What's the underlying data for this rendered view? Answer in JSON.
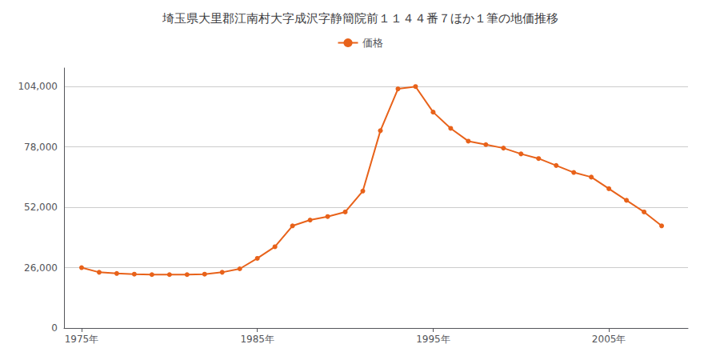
{
  "chart_data": {
    "type": "line",
    "title": "埼玉県大里郡江南村大字成沢字静簡院前１１４４番７ほか１筆の地価推移",
    "x": [
      1975,
      1976,
      1977,
      1978,
      1979,
      1980,
      1981,
      1982,
      1983,
      1984,
      1985,
      1986,
      1987,
      1988,
      1989,
      1990,
      1991,
      1992,
      1993,
      1994,
      1995,
      1996,
      1997,
      1998,
      1999,
      2000,
      2001,
      2002,
      2003,
      2004,
      2005,
      2006,
      2007,
      2008
    ],
    "series": [
      {
        "name": "価格",
        "color": "#e8621a",
        "values": [
          26000,
          24000,
          23500,
          23200,
          23000,
          23000,
          23000,
          23200,
          24000,
          25500,
          30000,
          35000,
          44000,
          46500,
          48000,
          50000,
          59000,
          85000,
          103000,
          104000,
          93000,
          86000,
          80500,
          79000,
          77500,
          75000,
          73000,
          70000,
          67000,
          65000,
          60000,
          55000,
          50000,
          44000
        ]
      }
    ],
    "xlim": [
      1974.0,
      2009.5
    ],
    "xticks": [
      {
        "value": 1975,
        "label": "1975年"
      },
      {
        "value": 1985,
        "label": "1985年"
      },
      {
        "value": 1995,
        "label": "1995年"
      },
      {
        "value": 2005,
        "label": "2005年"
      }
    ],
    "ylim": [
      0,
      112000
    ],
    "yticks": [
      0,
      {
        "value": 26000,
        "label": "26,000"
      },
      {
        "value": 52000,
        "label": "52,000"
      },
      {
        "value": 78000,
        "label": "78,000"
      },
      {
        "value": 104000,
        "label": "104,000"
      }
    ],
    "grid": true,
    "legend": "top",
    "marker": "circle"
  }
}
